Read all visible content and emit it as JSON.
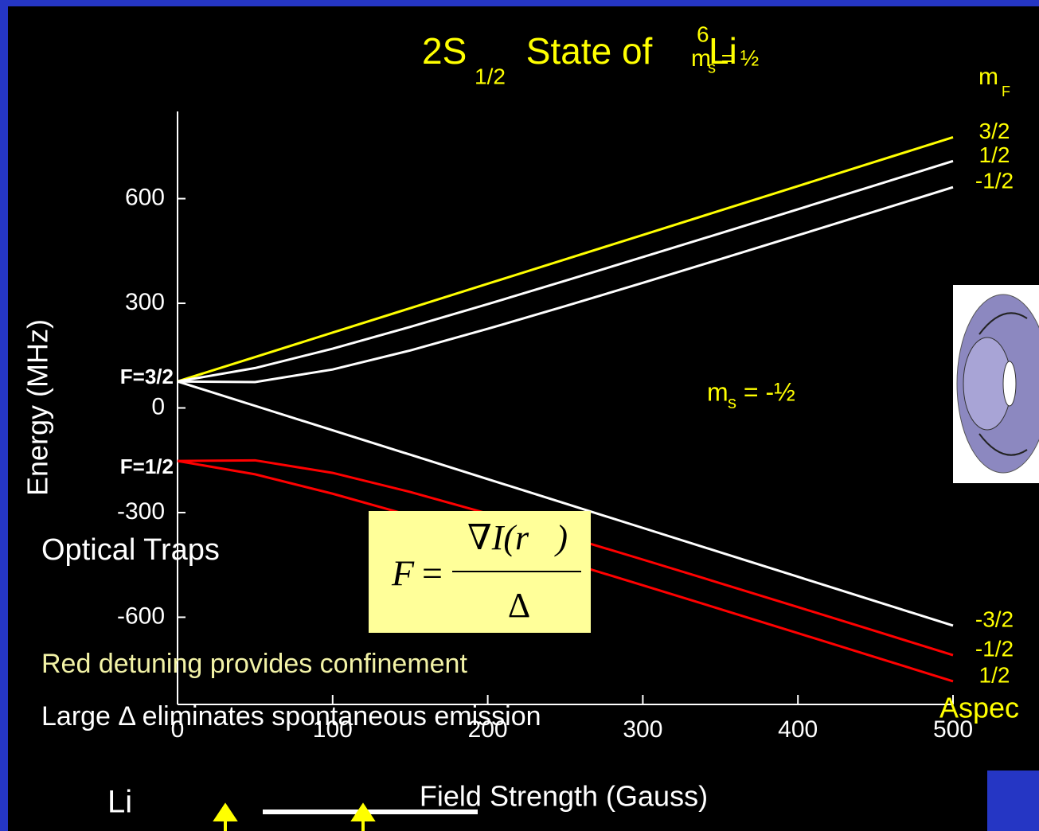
{
  "chart_data": {
    "type": "line",
    "title": {
      "main": "2S",
      "sub": "1/2",
      "rest": " State of ",
      "sup": "6",
      "element": "Li"
    },
    "x_label": "Field Strength (Gauss)",
    "y_label": "Energy (MHz)",
    "x": [
      0,
      50,
      100,
      150,
      200,
      250,
      300,
      350,
      400,
      450,
      500
    ],
    "xlim": [
      0,
      500
    ],
    "xticks": [
      0,
      100,
      200,
      300,
      400,
      500
    ],
    "ylim": [
      -850,
      850
    ],
    "yticks": [
      -600,
      -300,
      0,
      300,
      600
    ],
    "legend_title": {
      "main": "m",
      "sub": "F"
    },
    "series": [
      {
        "name": "3/2",
        "color": "#ffff00",
        "values": [
          76,
          146,
          216,
          286,
          356,
          426,
          496,
          566,
          636,
          706,
          776
        ]
      },
      {
        "name": "1/2",
        "color": "#ffffff",
        "values": [
          76,
          114.3,
          169.9,
          232.3,
          297.6,
          364.6,
          432.5,
          500.8,
          569.6,
          638.6,
          707.7
        ]
      },
      {
        "name": "-1/2",
        "color": "#ffffff",
        "values": [
          76,
          74.2,
          110.2,
          164.8,
          226.8,
          291.9,
          358.7,
          426.6,
          494.9,
          563.7,
          632.7
        ]
      },
      {
        "name": "-3/2",
        "color": "#ffffff",
        "values": [
          76,
          6,
          -64,
          -134,
          -204,
          -274,
          -344,
          -414,
          -484,
          -554,
          -624
        ]
      },
      {
        "name": "-1/2",
        "color": "#ff0000",
        "values": [
          -152,
          -150.2,
          -186.2,
          -240.8,
          -302.8,
          -367.9,
          -434.7,
          -502.6,
          -570.9,
          -639.7,
          -708.7
        ]
      },
      {
        "name": "1/2",
        "color": "#ff0000",
        "values": [
          -152,
          -190.3,
          -245.9,
          -308.3,
          -373.6,
          -440.6,
          -508.5,
          -576.8,
          -645.6,
          -714.6,
          -783.7
        ]
      }
    ],
    "annotations": {
      "f_upper": "F=3/2",
      "f_lower": "F=1/2",
      "ms_up": {
        "main": "m",
        "sub": "s",
        "rest": " = ½"
      },
      "ms_down": {
        "main": "m",
        "sub": "s",
        "rest": " = -½"
      }
    }
  },
  "slide": {
    "heading": "Optical Traps",
    "bullet_red": "Red detuning provides confinement",
    "bullet_large": "Large Δ eliminates spontaneous emission",
    "element": "Li",
    "credit": "Aspec",
    "formula": {
      "lhs": "F",
      "eq": "=",
      "numerator": "∇I(r⃗)",
      "denominator": "Δ"
    }
  }
}
